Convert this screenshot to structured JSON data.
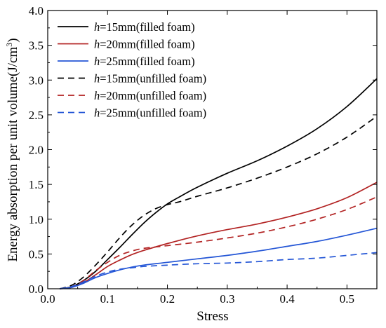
{
  "chart_data": {
    "type": "line",
    "title": "",
    "xlabel": "Stress",
    "ylabel": "Energy absorption per unit volume(J/cm",
    "ylabel_sup": "3",
    "ylabel_end": ")",
    "xlim": [
      0.0,
      0.55
    ],
    "ylim": [
      0.0,
      4.0
    ],
    "x_ticks": [
      "0.0",
      "0.1",
      "0.2",
      "0.3",
      "0.4",
      "0.5"
    ],
    "x_tick_values": [
      0.0,
      0.1,
      0.2,
      0.3,
      0.4,
      0.5
    ],
    "y_ticks": [
      "0.0",
      "0.5",
      "1.0",
      "1.5",
      "2.0",
      "2.5",
      "3.0",
      "3.5",
      "4.0"
    ],
    "y_tick_values": [
      0.0,
      0.5,
      1.0,
      1.5,
      2.0,
      2.5,
      3.0,
      3.5,
      4.0
    ],
    "grid": false,
    "legend_position": "top-left",
    "series": [
      {
        "name_italic": "h",
        "name_rest": "=15mm(filled foam)",
        "color": "#000000",
        "dash": "solid",
        "x": [
          0.02,
          0.04,
          0.06,
          0.08,
          0.1,
          0.12,
          0.14,
          0.16,
          0.18,
          0.2,
          0.22,
          0.25,
          0.3,
          0.35,
          0.4,
          0.45,
          0.5,
          0.55
        ],
        "y": [
          0.0,
          0.03,
          0.12,
          0.25,
          0.42,
          0.59,
          0.77,
          0.94,
          1.09,
          1.22,
          1.32,
          1.46,
          1.66,
          1.84,
          2.05,
          2.3,
          2.62,
          3.02
        ]
      },
      {
        "name_italic": "h",
        "name_rest": "=20mm(filled foam)",
        "color": "#b22222",
        "dash": "solid",
        "x": [
          0.02,
          0.04,
          0.06,
          0.08,
          0.1,
          0.12,
          0.14,
          0.16,
          0.2,
          0.25,
          0.3,
          0.35,
          0.4,
          0.45,
          0.5,
          0.55
        ],
        "y": [
          0.0,
          0.02,
          0.09,
          0.2,
          0.32,
          0.41,
          0.49,
          0.55,
          0.65,
          0.76,
          0.85,
          0.93,
          1.03,
          1.15,
          1.31,
          1.53
        ]
      },
      {
        "name_italic": "h",
        "name_rest": "=25mm(filled foam)",
        "color": "#2456d6",
        "dash": "solid",
        "x": [
          0.02,
          0.04,
          0.06,
          0.08,
          0.1,
          0.12,
          0.14,
          0.16,
          0.2,
          0.25,
          0.3,
          0.35,
          0.4,
          0.45,
          0.5,
          0.55
        ],
        "y": [
          0.0,
          0.02,
          0.08,
          0.16,
          0.22,
          0.27,
          0.31,
          0.34,
          0.38,
          0.43,
          0.48,
          0.54,
          0.61,
          0.68,
          0.77,
          0.87
        ]
      },
      {
        "name_italic": "h",
        "name_rest": "=15mm(unfilled foam)",
        "color": "#000000",
        "dash": "dashed",
        "x": [
          0.02,
          0.04,
          0.06,
          0.08,
          0.1,
          0.12,
          0.14,
          0.16,
          0.18,
          0.2,
          0.22,
          0.25,
          0.3,
          0.35,
          0.4,
          0.45,
          0.5,
          0.55
        ],
        "y": [
          0.0,
          0.05,
          0.17,
          0.34,
          0.53,
          0.73,
          0.91,
          1.05,
          1.15,
          1.21,
          1.25,
          1.33,
          1.45,
          1.59,
          1.75,
          1.94,
          2.18,
          2.48
        ]
      },
      {
        "name_italic": "h",
        "name_rest": "=20mm(unfilled foam)",
        "color": "#b22222",
        "dash": "dashed",
        "x": [
          0.02,
          0.04,
          0.06,
          0.08,
          0.1,
          0.12,
          0.14,
          0.16,
          0.2,
          0.25,
          0.3,
          0.35,
          0.4,
          0.45,
          0.5,
          0.55
        ],
        "y": [
          0.0,
          0.03,
          0.12,
          0.26,
          0.38,
          0.48,
          0.54,
          0.58,
          0.62,
          0.67,
          0.73,
          0.8,
          0.89,
          1.0,
          1.14,
          1.32
        ]
      },
      {
        "name_italic": "h",
        "name_rest": "=25mm(unfilled foam)",
        "color": "#2456d6",
        "dash": "dashed",
        "x": [
          0.02,
          0.04,
          0.06,
          0.08,
          0.1,
          0.12,
          0.14,
          0.16,
          0.2,
          0.25,
          0.3,
          0.35,
          0.4,
          0.45,
          0.5,
          0.55
        ],
        "y": [
          0.0,
          0.03,
          0.1,
          0.18,
          0.24,
          0.28,
          0.3,
          0.32,
          0.34,
          0.36,
          0.37,
          0.39,
          0.42,
          0.44,
          0.48,
          0.52
        ]
      }
    ]
  }
}
